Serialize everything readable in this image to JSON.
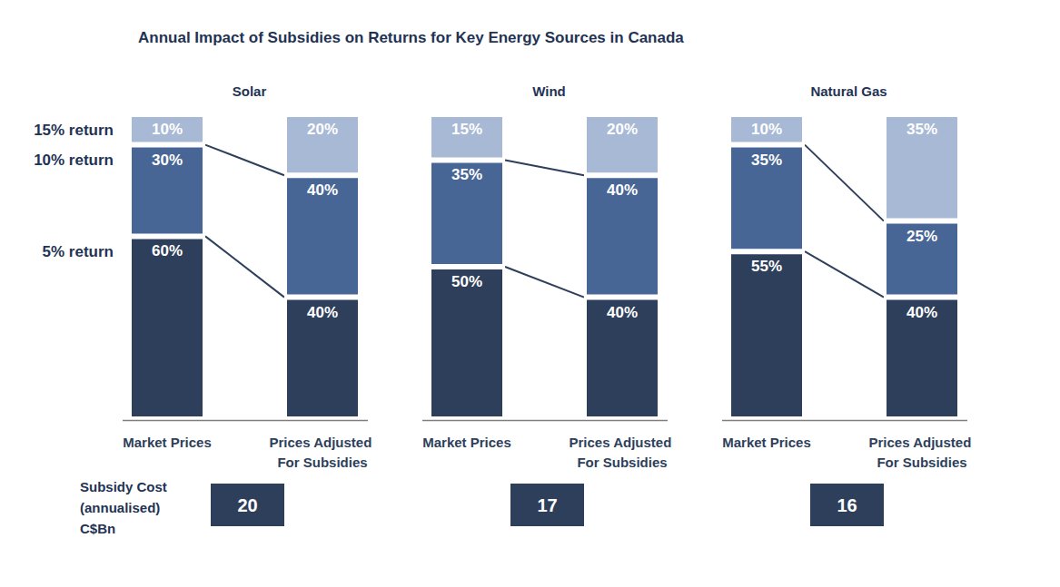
{
  "title": "Annual Impact of Subsidies on Returns for Key Energy Sources in Canada",
  "subsidy_cost_label": "Subsidy Cost (annualised) C$Bn",
  "chart_data": [
    {
      "type": "bar",
      "title": "Solar",
      "categories": [
        "Market Prices",
        "Prices Adjusted For Subsidies"
      ],
      "stacked": true,
      "data_labels": true,
      "tick_labels": "x",
      "ylim": [
        0,
        100
      ],
      "series": [
        {
          "name": "5% return",
          "color": "#2e3f5c",
          "values": [
            60,
            40
          ],
          "value_labels": [
            "60%",
            "40%"
          ]
        },
        {
          "name": "10% return",
          "color": "#476696",
          "values": [
            30,
            40
          ],
          "value_labels": [
            "30%",
            "40%"
          ]
        },
        {
          "name": "15% return",
          "color": "#a8b9d6",
          "values": [
            10,
            20
          ],
          "value_labels": [
            "10%",
            "20%"
          ]
        }
      ],
      "subsidy_cost": 20
    },
    {
      "type": "bar",
      "title": "Wind",
      "categories": [
        "Market Prices",
        "Prices Adjusted For Subsidies"
      ],
      "stacked": true,
      "data_labels": true,
      "tick_labels": "x",
      "ylim": [
        0,
        100
      ],
      "series": [
        {
          "name": "5% return",
          "color": "#2e3f5c",
          "values": [
            50,
            40
          ],
          "value_labels": [
            "50%",
            "40%"
          ]
        },
        {
          "name": "10% return",
          "color": "#476696",
          "values": [
            35,
            40
          ],
          "value_labels": [
            "35%",
            "40%"
          ]
        },
        {
          "name": "15% return",
          "color": "#a8b9d6",
          "values": [
            15,
            20
          ],
          "value_labels": [
            "15%",
            "20%"
          ]
        }
      ],
      "subsidy_cost": 17
    },
    {
      "type": "bar",
      "title": "Natural Gas",
      "categories": [
        "Market Prices",
        "Prices Adjusted For Subsidies"
      ],
      "stacked": true,
      "data_labels": true,
      "tick_labels": "x",
      "ylim": [
        0,
        100
      ],
      "series": [
        {
          "name": "5% return",
          "color": "#2e3f5c",
          "values": [
            55,
            40
          ],
          "value_labels": [
            "55%",
            "40%"
          ]
        },
        {
          "name": "10% return",
          "color": "#476696",
          "values": [
            35,
            25
          ],
          "value_labels": [
            "35%",
            "25%"
          ]
        },
        {
          "name": "15% return",
          "color": "#a8b9d6",
          "values": [
            10,
            35
          ],
          "value_labels": [
            "10%",
            "35%"
          ]
        }
      ],
      "subsidy_cost": 16
    }
  ]
}
